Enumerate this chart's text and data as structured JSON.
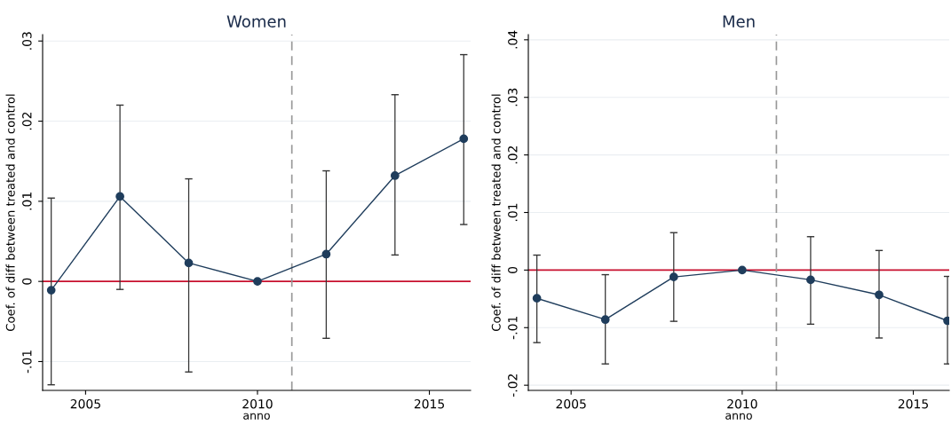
{
  "chart_data": [
    {
      "type": "line",
      "title": "Women",
      "xlabel": "anno",
      "ylabel": "Coef. of diff between treated and control",
      "x": [
        2004,
        2006,
        2008,
        2010,
        2012,
        2014,
        2016
      ],
      "series": [
        {
          "color": "#1f3d5c",
          "values": [
            -0.0011,
            0.0106,
            0.0023,
            0,
            0.0034,
            0.0132,
            0.0178
          ],
          "errors": [
            [
              -0.0129,
              0.0104
            ],
            [
              -0.001,
              0.022
            ],
            [
              -0.0113,
              0.0128
            ],
            null,
            [
              -0.0071,
              0.0138
            ],
            [
              0.0033,
              0.0233
            ],
            [
              0.0071,
              0.0283
            ]
          ]
        }
      ],
      "marker": "circle",
      "line_style": "solid",
      "grid": "y",
      "legend": false,
      "xlim": [
        2003.75,
        2016.2
      ],
      "xticks": [
        2005,
        2010,
        2015
      ],
      "ylim": [
        -0.0136,
        0.0308
      ],
      "yticks": [
        {
          "value": -0.01,
          "label": "-.01"
        },
        0,
        {
          "value": 0.01,
          "label": ".01"
        },
        {
          "value": 0.02,
          "label": ".02"
        },
        {
          "value": 0.03,
          "label": ".03"
        }
      ],
      "ref_lines": [
        {
          "axis": "y",
          "value": 0,
          "color": "#c8102e",
          "line_style": "solid"
        },
        {
          "axis": "x",
          "value": 2011,
          "color": "#999999",
          "line_style": "dashed"
        }
      ]
    },
    {
      "type": "line",
      "title": "Men",
      "xlabel": "anno",
      "ylabel": "Coef. of diff between treated and control",
      "x": [
        2004,
        2006,
        2008,
        2010,
        2012,
        2014,
        2016
      ],
      "series": [
        {
          "color": "#1f3d5c",
          "values": [
            -0.0049,
            -0.0086,
            -0.0012,
            0,
            -0.0017,
            -0.0043,
            -0.0088
          ],
          "errors": [
            [
              -0.0126,
              0.0026
            ],
            [
              -0.0163,
              -0.0008
            ],
            [
              -0.0089,
              0.0065
            ],
            null,
            [
              -0.0094,
              0.0058
            ],
            [
              -0.0118,
              0.0034
            ],
            [
              -0.0163,
              -0.0011
            ]
          ]
        }
      ],
      "marker": "circle",
      "line_style": "solid",
      "grid": "y",
      "legend": false,
      "xlim": [
        2003.75,
        2016.05
      ],
      "xticks": [
        2005,
        2010,
        2015
      ],
      "ylim": [
        -0.0209,
        0.0409
      ],
      "yticks": [
        {
          "value": -0.02,
          "label": "-.02"
        },
        {
          "value": -0.01,
          "label": "-.01"
        },
        0,
        {
          "value": 0.01,
          "label": ".01"
        },
        {
          "value": 0.02,
          "label": ".02"
        },
        {
          "value": 0.03,
          "label": ".03"
        },
        {
          "value": 0.04,
          "label": ".04"
        }
      ],
      "ref_lines": [
        {
          "axis": "y",
          "value": 0,
          "color": "#c8102e",
          "line_style": "solid"
        },
        {
          "axis": "x",
          "value": 2011,
          "color": "#999999",
          "line_style": "dashed"
        }
      ]
    }
  ]
}
